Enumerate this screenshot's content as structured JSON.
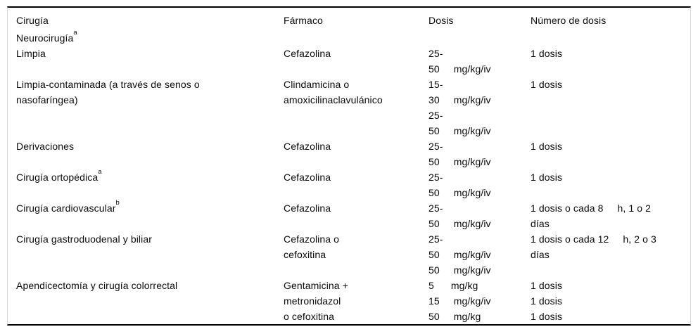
{
  "meta": {
    "background_color": "#ffffff",
    "text_color": "#0a0a0a",
    "rule_color": "#000000",
    "side_rule_color": "#d8d8d8"
  },
  "table": {
    "columns": [
      "Cirugía",
      "Fármaco",
      "Dosis",
      "Número de dosis"
    ],
    "rows": [
      {
        "cirugia": [
          {
            "t": "Neurocirugía",
            "sup": "a"
          }
        ],
        "farmaco": [],
        "dosis": [],
        "numero": []
      },
      {
        "cirugia": [
          {
            "t": "Limpia"
          }
        ],
        "farmaco": [
          {
            "t": "Cefazolina"
          }
        ],
        "dosis": [
          {
            "t": "25-"
          },
          {
            "t": "50     mg/kg/iv"
          }
        ],
        "numero": [
          {
            "t": "1 dosis"
          }
        ]
      },
      {
        "cirugia": [
          {
            "t": "Limpia-contaminada (a través de senos o"
          },
          {
            "t": "nasofaríngea)"
          }
        ],
        "farmaco": [
          {
            "t": "Clindamicina o"
          },
          {
            "t": "amoxicilinaclavulánico"
          }
        ],
        "dosis": [
          {
            "t": "15-"
          },
          {
            "t": "30     mg/kg/iv"
          },
          {
            "t": "25-"
          },
          {
            "t": "50     mg/kg/iv"
          }
        ],
        "numero": [
          {
            "t": "1 dosis"
          }
        ]
      },
      {
        "cirugia": [
          {
            "t": "Derivaciones"
          }
        ],
        "farmaco": [
          {
            "t": "Cefazolina"
          }
        ],
        "dosis": [
          {
            "t": "25-"
          },
          {
            "t": "50     mg/kg/iv"
          }
        ],
        "numero": [
          {
            "t": "1 dosis"
          }
        ]
      },
      {
        "cirugia": [
          {
            "t": "Cirugía ortopédica",
            "sup": "a"
          }
        ],
        "farmaco": [
          {
            "t": "Cefazolina"
          }
        ],
        "dosis": [
          {
            "t": "25-"
          },
          {
            "t": "50     mg/kg/iv"
          }
        ],
        "numero": [
          {
            "t": "1 dosis"
          }
        ]
      },
      {
        "cirugia": [
          {
            "t": "Cirugía cardiovascular",
            "sup": "b"
          }
        ],
        "farmaco": [
          {
            "t": "Cefazolina"
          }
        ],
        "dosis": [
          {
            "t": "25-"
          },
          {
            "t": "50     mg/kg/iv"
          }
        ],
        "numero": [
          {
            "t": "1 dosis o cada 8     h, 1 o 2"
          },
          {
            "t": "días"
          }
        ]
      },
      {
        "cirugia": [
          {
            "t": "Cirugía gastroduodenal y biliar"
          }
        ],
        "farmaco": [
          {
            "t": "Cefazolina o"
          },
          {
            "t": "cefoxitina"
          }
        ],
        "dosis": [
          {
            "t": "25-"
          },
          {
            "t": "50     mg/kg/iv"
          },
          {
            "t": "50     mg/kg/iv"
          }
        ],
        "numero": [
          {
            "t": "1 dosis o cada 12     h, 2 o 3"
          },
          {
            "t": "días"
          }
        ]
      },
      {
        "cirugia": [
          {
            "t": "Apendicectomía y cirugía colorrectal"
          }
        ],
        "farmaco": [
          {
            "t": "Gentamicina +"
          },
          {
            "t": "metronidazol"
          },
          {
            "t": "o cefoxitina"
          }
        ],
        "dosis": [
          {
            "t": "5      mg/kg"
          },
          {
            "t": "15     mg/kg/iv"
          },
          {
            "t": "50     mg/kg"
          }
        ],
        "numero": [
          {
            "t": "1 dosis"
          },
          {
            "t": "1 dosis"
          },
          {
            "t": "1 dosis"
          }
        ]
      }
    ]
  }
}
